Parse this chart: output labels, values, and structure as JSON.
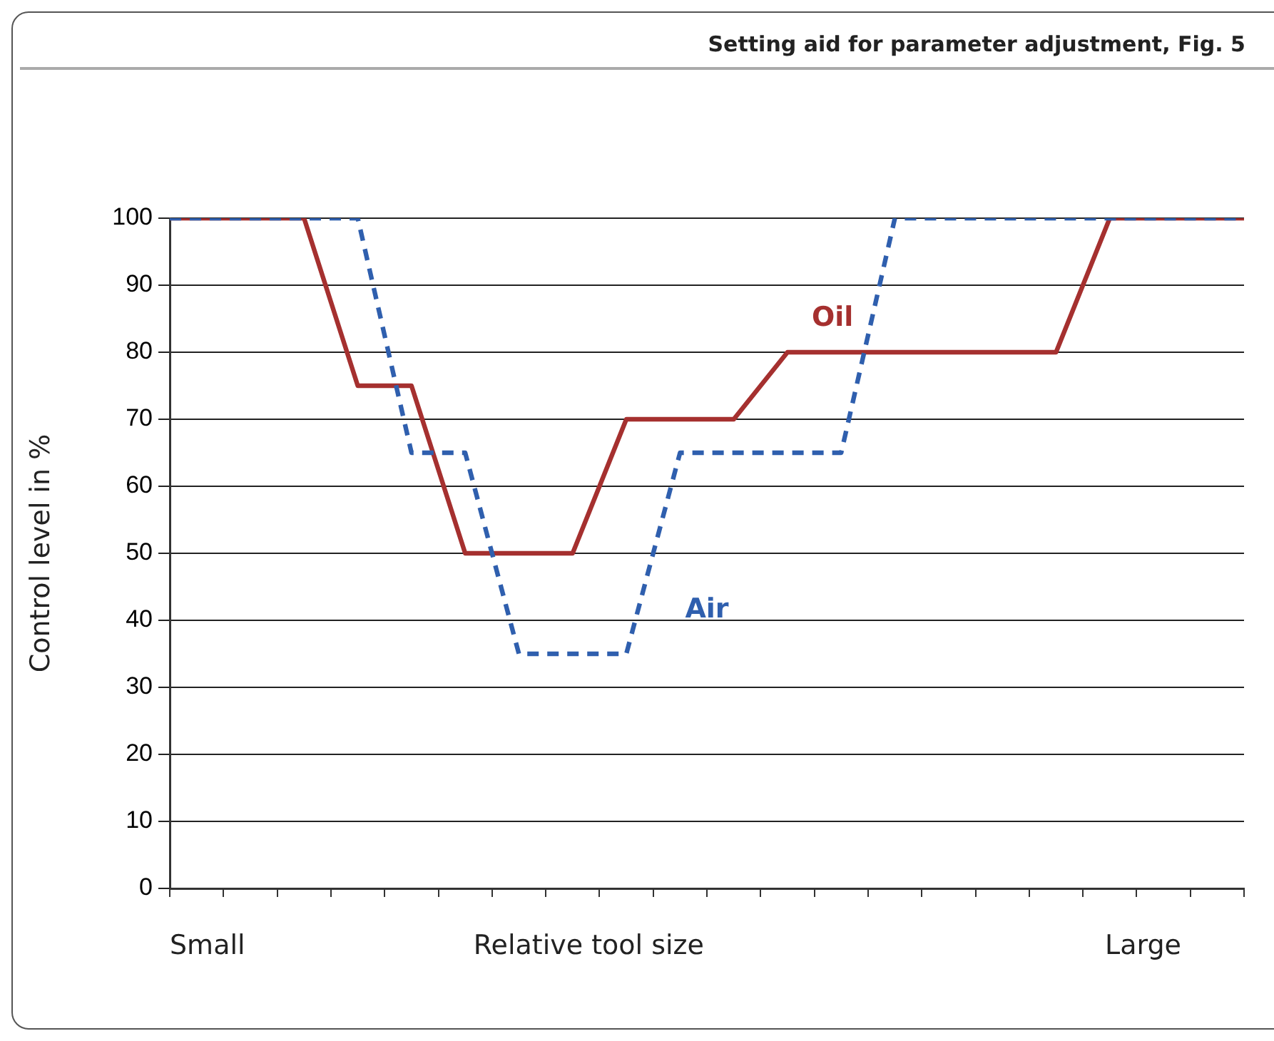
{
  "chart_data": {
    "type": "line",
    "title": "Setting aid for parameter adjustment, Fig. 5",
    "xlabel": "Relative tool size",
    "ylabel": "Control level in %",
    "annotations": [
      "Small",
      "Large"
    ],
    "categories": [
      null,
      null,
      null,
      null,
      null,
      null,
      null,
      null,
      null,
      null,
      null,
      null,
      null,
      null,
      null,
      null,
      null,
      null,
      null,
      null,
      null,
      null,
      null,
      null,
      null,
      null,
      null,
      null,
      null,
      null,
      null,
      null,
      null,
      null,
      null,
      null,
      null,
      null,
      null,
      null,
      null
    ],
    "ylim": [
      0,
      100
    ],
    "yticks": [
      0,
      10,
      20,
      30,
      40,
      50,
      60,
      70,
      80,
      90,
      100
    ],
    "grid": "y",
    "legend": false,
    "tick_labels": "y",
    "marker": "none",
    "series": [
      {
        "name": "Oil",
        "color": "#a5302f",
        "line_style": "solid",
        "values": [
          100,
          100,
          100,
          100,
          100,
          100,
          87.5,
          75,
          75,
          75,
          62.5,
          50,
          50,
          50,
          50,
          50,
          60,
          70,
          70,
          70,
          70,
          70,
          75,
          80,
          80,
          80,
          80,
          80,
          80,
          80,
          80,
          80,
          80,
          80,
          90,
          100,
          100,
          100,
          100,
          100,
          100
        ]
      },
      {
        "name": "Air",
        "color": "#2f5fae",
        "line_style": "dashed",
        "values": [
          100,
          100,
          100,
          100,
          100,
          100,
          100,
          100,
          82.5,
          65,
          65,
          65,
          50,
          35,
          35,
          35,
          35,
          35,
          50,
          65,
          65,
          65,
          65,
          65,
          65,
          65,
          82.5,
          100,
          100,
          100,
          100,
          100,
          100,
          100,
          100,
          100,
          100,
          100,
          100,
          100,
          100
        ]
      }
    ]
  }
}
